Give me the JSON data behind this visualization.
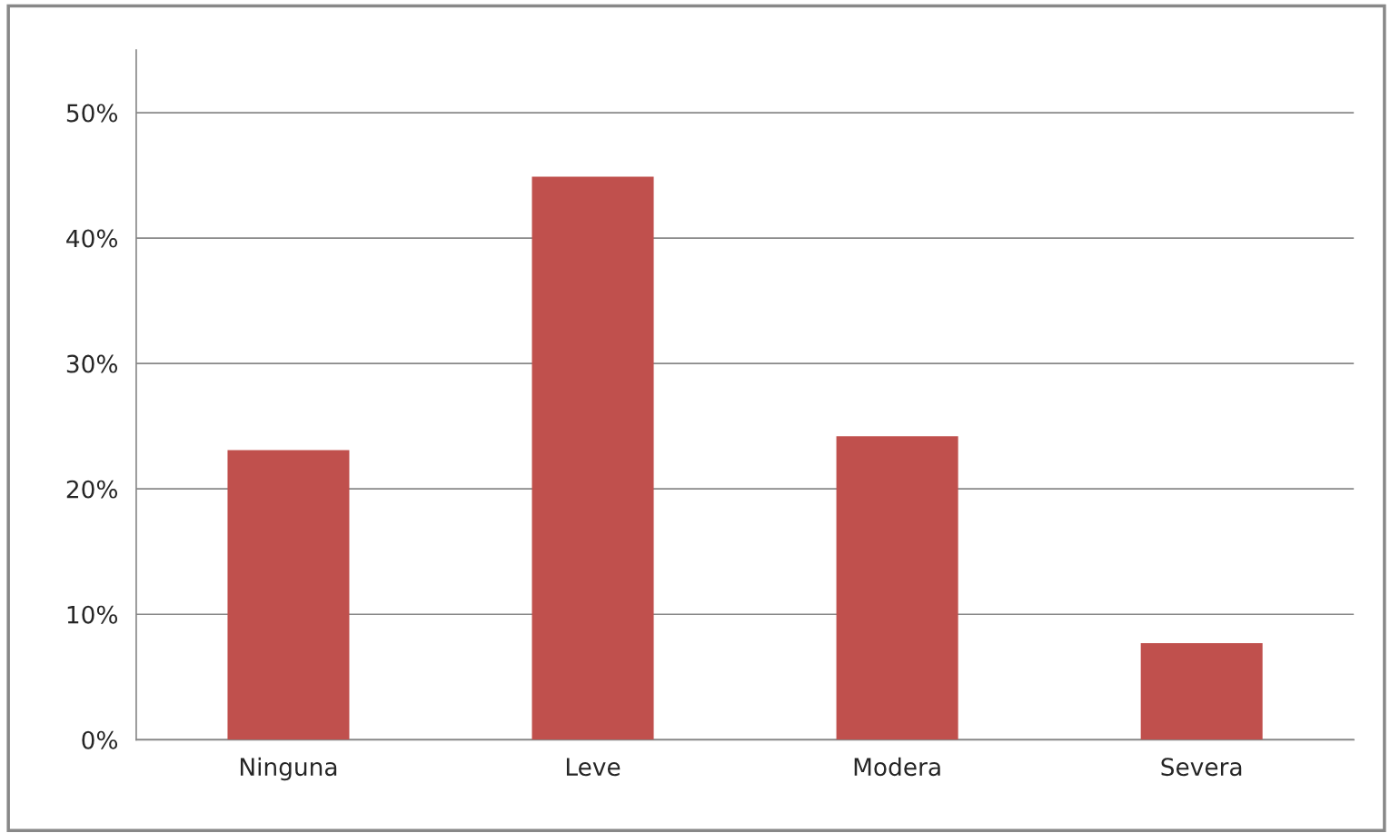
{
  "chart_data": {
    "type": "bar",
    "categories": [
      "Ninguna",
      "Leve",
      "Modera",
      "Severa"
    ],
    "values": [
      23.1,
      44.9,
      24.2,
      7.7
    ],
    "color": "#c0504d",
    "ylim": [
      0,
      55
    ],
    "yticks": [
      {
        "value": 0,
        "label": "0%"
      },
      {
        "value": 10,
        "label": "10%"
      },
      {
        "value": 20,
        "label": "20%"
      },
      {
        "value": 30,
        "label": "30%"
      },
      {
        "value": 40,
        "label": "40%"
      },
      {
        "value": 50,
        "label": "50%"
      }
    ],
    "grid": "y"
  }
}
